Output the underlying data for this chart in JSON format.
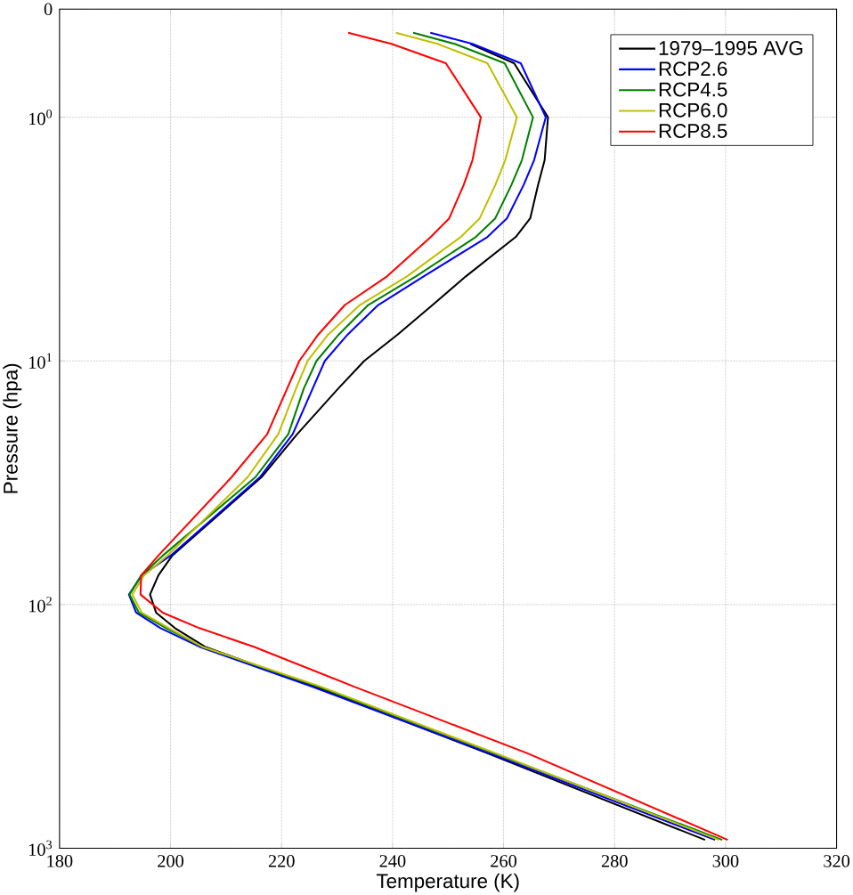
{
  "chart_data": {
    "type": "line",
    "xlabel": "Temperature (K)",
    "ylabel": "Pressure (hpa)",
    "series": [
      {
        "name": "1979–1995 AVG",
        "color": "#000000",
        "x": [
          254,
          261.9,
          268.0,
          267.4,
          266.2,
          264.8,
          262.2,
          253.2,
          247.2,
          240.9,
          234.9,
          230.2,
          222.8,
          216.4,
          200.3,
          197.8,
          196.3,
          197.4,
          200.8,
          206.2,
          225.9,
          257.2,
          296.3
        ],
        "values": [
          0.5,
          0.6,
          1,
          1.5,
          1.9,
          2.6,
          3.1,
          4.5,
          5.9,
          7.8,
          10,
          13,
          20,
          30,
          63,
          76,
          91,
          108,
          125,
          149,
          217,
          409,
          925
        ]
      },
      {
        "name": "RCP2.6",
        "color": "#0000ff",
        "x": [
          246.8,
          254.4,
          263.1,
          267.6,
          265.5,
          263.6,
          260.6,
          257.1,
          245.6,
          237.4,
          231.9,
          227.8,
          225.6,
          222.0,
          216.1,
          200.0,
          194.8,
          192.5,
          193.8,
          198.2,
          205.2,
          225.4,
          257.6,
          298.1
        ],
        "values": [
          0.45,
          0.5,
          0.6,
          1,
          1.5,
          1.9,
          2.6,
          3.1,
          4.5,
          5.9,
          7.8,
          10,
          13,
          20,
          30,
          63,
          76,
          91,
          108,
          125,
          149,
          217,
          409,
          925
        ]
      },
      {
        "name": "RCP4.5",
        "color": "#008000",
        "x": [
          243.7,
          251.2,
          260.2,
          265.3,
          263.3,
          261.4,
          258.5,
          255.0,
          244.2,
          235.6,
          230.3,
          226.3,
          224.0,
          221.2,
          215.3,
          198.6,
          194.7,
          192.6,
          194.3,
          199.2,
          205.7,
          226.5,
          258.4,
          299.4
        ],
        "values": [
          0.45,
          0.5,
          0.6,
          1,
          1.5,
          1.9,
          2.6,
          3.1,
          4.5,
          5.9,
          7.8,
          10,
          13,
          20,
          30,
          63,
          76,
          91,
          108,
          125,
          149,
          217,
          409,
          925
        ]
      },
      {
        "name": "RCP6.0",
        "color": "#bfbf00",
        "x": [
          240.6,
          248.1,
          257.1,
          262.4,
          260.3,
          258.5,
          255.7,
          252.3,
          242.6,
          234.1,
          228.4,
          224.7,
          222.6,
          219.4,
          213.9,
          199.4,
          195.2,
          193.1,
          194.8,
          199.7,
          205.7,
          227.0,
          258.7,
          298.8
        ],
        "values": [
          0.45,
          0.5,
          0.6,
          1,
          1.5,
          1.9,
          2.6,
          3.1,
          4.5,
          5.9,
          7.8,
          10,
          13,
          20,
          30,
          63,
          76,
          91,
          108,
          125,
          149,
          217,
          409,
          925
        ]
      },
      {
        "name": "RCP8.5",
        "color": "#ff0000",
        "x": [
          232.0,
          239.8,
          249.6,
          255.9,
          254.4,
          252.8,
          250.2,
          246.9,
          239.0,
          231.4,
          226.6,
          223.2,
          221.0,
          217.4,
          211.0,
          197.8,
          194.7,
          194.6,
          198.6,
          205.2,
          215.0,
          233.0,
          264.4,
          300.4
        ],
        "values": [
          0.45,
          0.5,
          0.6,
          1,
          1.5,
          1.9,
          2.6,
          3.1,
          4.5,
          5.9,
          7.8,
          10,
          13,
          20,
          30,
          63,
          76,
          91,
          108,
          125,
          149,
          217,
          409,
          925
        ]
      }
    ],
    "xlim": [
      180,
      320
    ],
    "xticks": [
      180,
      200,
      220,
      240,
      260,
      280,
      300,
      320
    ],
    "ylim": [
      1000,
      0.36
    ],
    "log": "y",
    "yticks": [
      {
        "value": 0.36,
        "label": "0"
      },
      {
        "value": 1,
        "label": "10$^{0}$"
      },
      {
        "value": 10,
        "label": "10$^{1}$"
      },
      {
        "value": 100,
        "label": "10$^{2}$"
      },
      {
        "value": 1000,
        "label": "10$^{3}$"
      }
    ],
    "grid": true,
    "legend": "top right",
    "marker": "none",
    "line_style": "solid"
  }
}
